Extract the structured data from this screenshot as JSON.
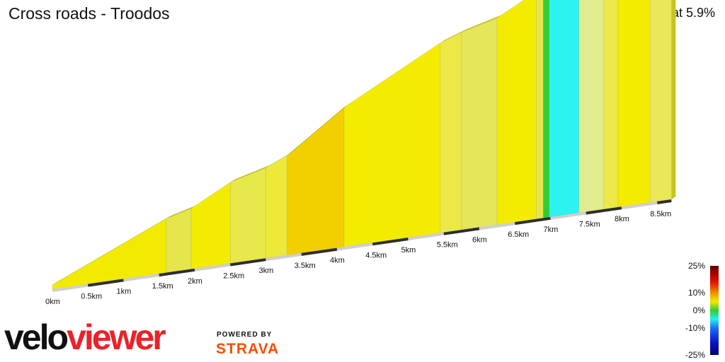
{
  "header": {
    "title": "Cross roads - Troodos",
    "stats": "8.7 km at 5.9%"
  },
  "branding": {
    "logo_part1": "velo",
    "logo_part2": "viewer",
    "powered_by": "POWERED BY",
    "strava": "STRAVA",
    "logo_colors": {
      "velo": "#111111",
      "viewer": "#e8242a",
      "strava": "#fc4c02"
    }
  },
  "chart_data": {
    "type": "area",
    "title": "Cross roads - Troodos",
    "total_distance_km": 8.7,
    "average_gradient_percent": 5.9,
    "xlabel": "",
    "ylabel": "",
    "x_ticks": [
      "0km",
      "0.5km",
      "1km",
      "1.5km",
      "2km",
      "2.5km",
      "3km",
      "3.5km",
      "4km",
      "4.5km",
      "5km",
      "5.5km",
      "6km",
      "6.5km",
      "7km",
      "7.5km",
      "8km",
      "8.5km"
    ],
    "x_tick_values": [
      0,
      0.5,
      1,
      1.5,
      2,
      2.5,
      3,
      3.5,
      4,
      4.5,
      5,
      5.5,
      6,
      6.5,
      7,
      7.5,
      8,
      8.5
    ],
    "segments": [
      {
        "start_km": 0.0,
        "end_km": 1.6,
        "gradient": 5,
        "color": "#f2ea00"
      },
      {
        "start_km": 1.6,
        "end_km": 1.95,
        "gradient": 3,
        "color": "#e6e64c"
      },
      {
        "start_km": 1.95,
        "end_km": 2.5,
        "gradient": 6,
        "color": "#f3ec00"
      },
      {
        "start_km": 2.5,
        "end_km": 3.0,
        "gradient": 3,
        "color": "#e8e84a"
      },
      {
        "start_km": 3.0,
        "end_km": 3.3,
        "gradient": 5,
        "color": "#ece93a"
      },
      {
        "start_km": 3.3,
        "end_km": 4.1,
        "gradient": 8,
        "color": "#f2d000"
      },
      {
        "start_km": 4.1,
        "end_km": 5.45,
        "gradient": 6,
        "color": "#f3ec00"
      },
      {
        "start_km": 5.45,
        "end_km": 5.75,
        "gradient": 4,
        "color": "#ece848"
      },
      {
        "start_km": 5.75,
        "end_km": 6.25,
        "gradient": 3,
        "color": "#e6e65a"
      },
      {
        "start_km": 6.25,
        "end_km": 6.8,
        "gradient": 6,
        "color": "#f3ec00"
      },
      {
        "start_km": 6.8,
        "end_km": 6.9,
        "gradient": 3,
        "color": "#e6e64c"
      },
      {
        "start_km": 6.9,
        "end_km": 6.98,
        "gradient": 0,
        "color": "#33cc33"
      },
      {
        "start_km": 6.98,
        "end_km": 7.4,
        "gradient": -6,
        "color": "#2df2f2"
      },
      {
        "start_km": 7.4,
        "end_km": 7.75,
        "gradient": 2,
        "color": "#e0ec90"
      },
      {
        "start_km": 7.75,
        "end_km": 7.95,
        "gradient": 4,
        "color": "#ece848"
      },
      {
        "start_km": 7.95,
        "end_km": 8.4,
        "gradient": 6,
        "color": "#f3ec00"
      },
      {
        "start_km": 8.4,
        "end_km": 8.7,
        "gradient": 4,
        "color": "#e8e858"
      }
    ],
    "gradient_scale": {
      "labels": [
        "25%",
        "10%",
        "0%",
        "-10%",
        "-25%"
      ],
      "values": [
        25,
        10,
        0,
        -10,
        -25
      ],
      "color_stops": [
        {
          "value": 25,
          "color": "#5a0000"
        },
        {
          "value": 20,
          "color": "#b40000"
        },
        {
          "value": 15,
          "color": "#e81e00"
        },
        {
          "value": 10,
          "color": "#f08c00"
        },
        {
          "value": 5,
          "color": "#f2ea00"
        },
        {
          "value": 0,
          "color": "#33cc33"
        },
        {
          "value": -5,
          "color": "#22f0f0"
        },
        {
          "value": -10,
          "color": "#1e6ef0"
        },
        {
          "value": -18,
          "color": "#0a14c8"
        },
        {
          "value": -25,
          "color": "#00006e"
        }
      ]
    }
  }
}
